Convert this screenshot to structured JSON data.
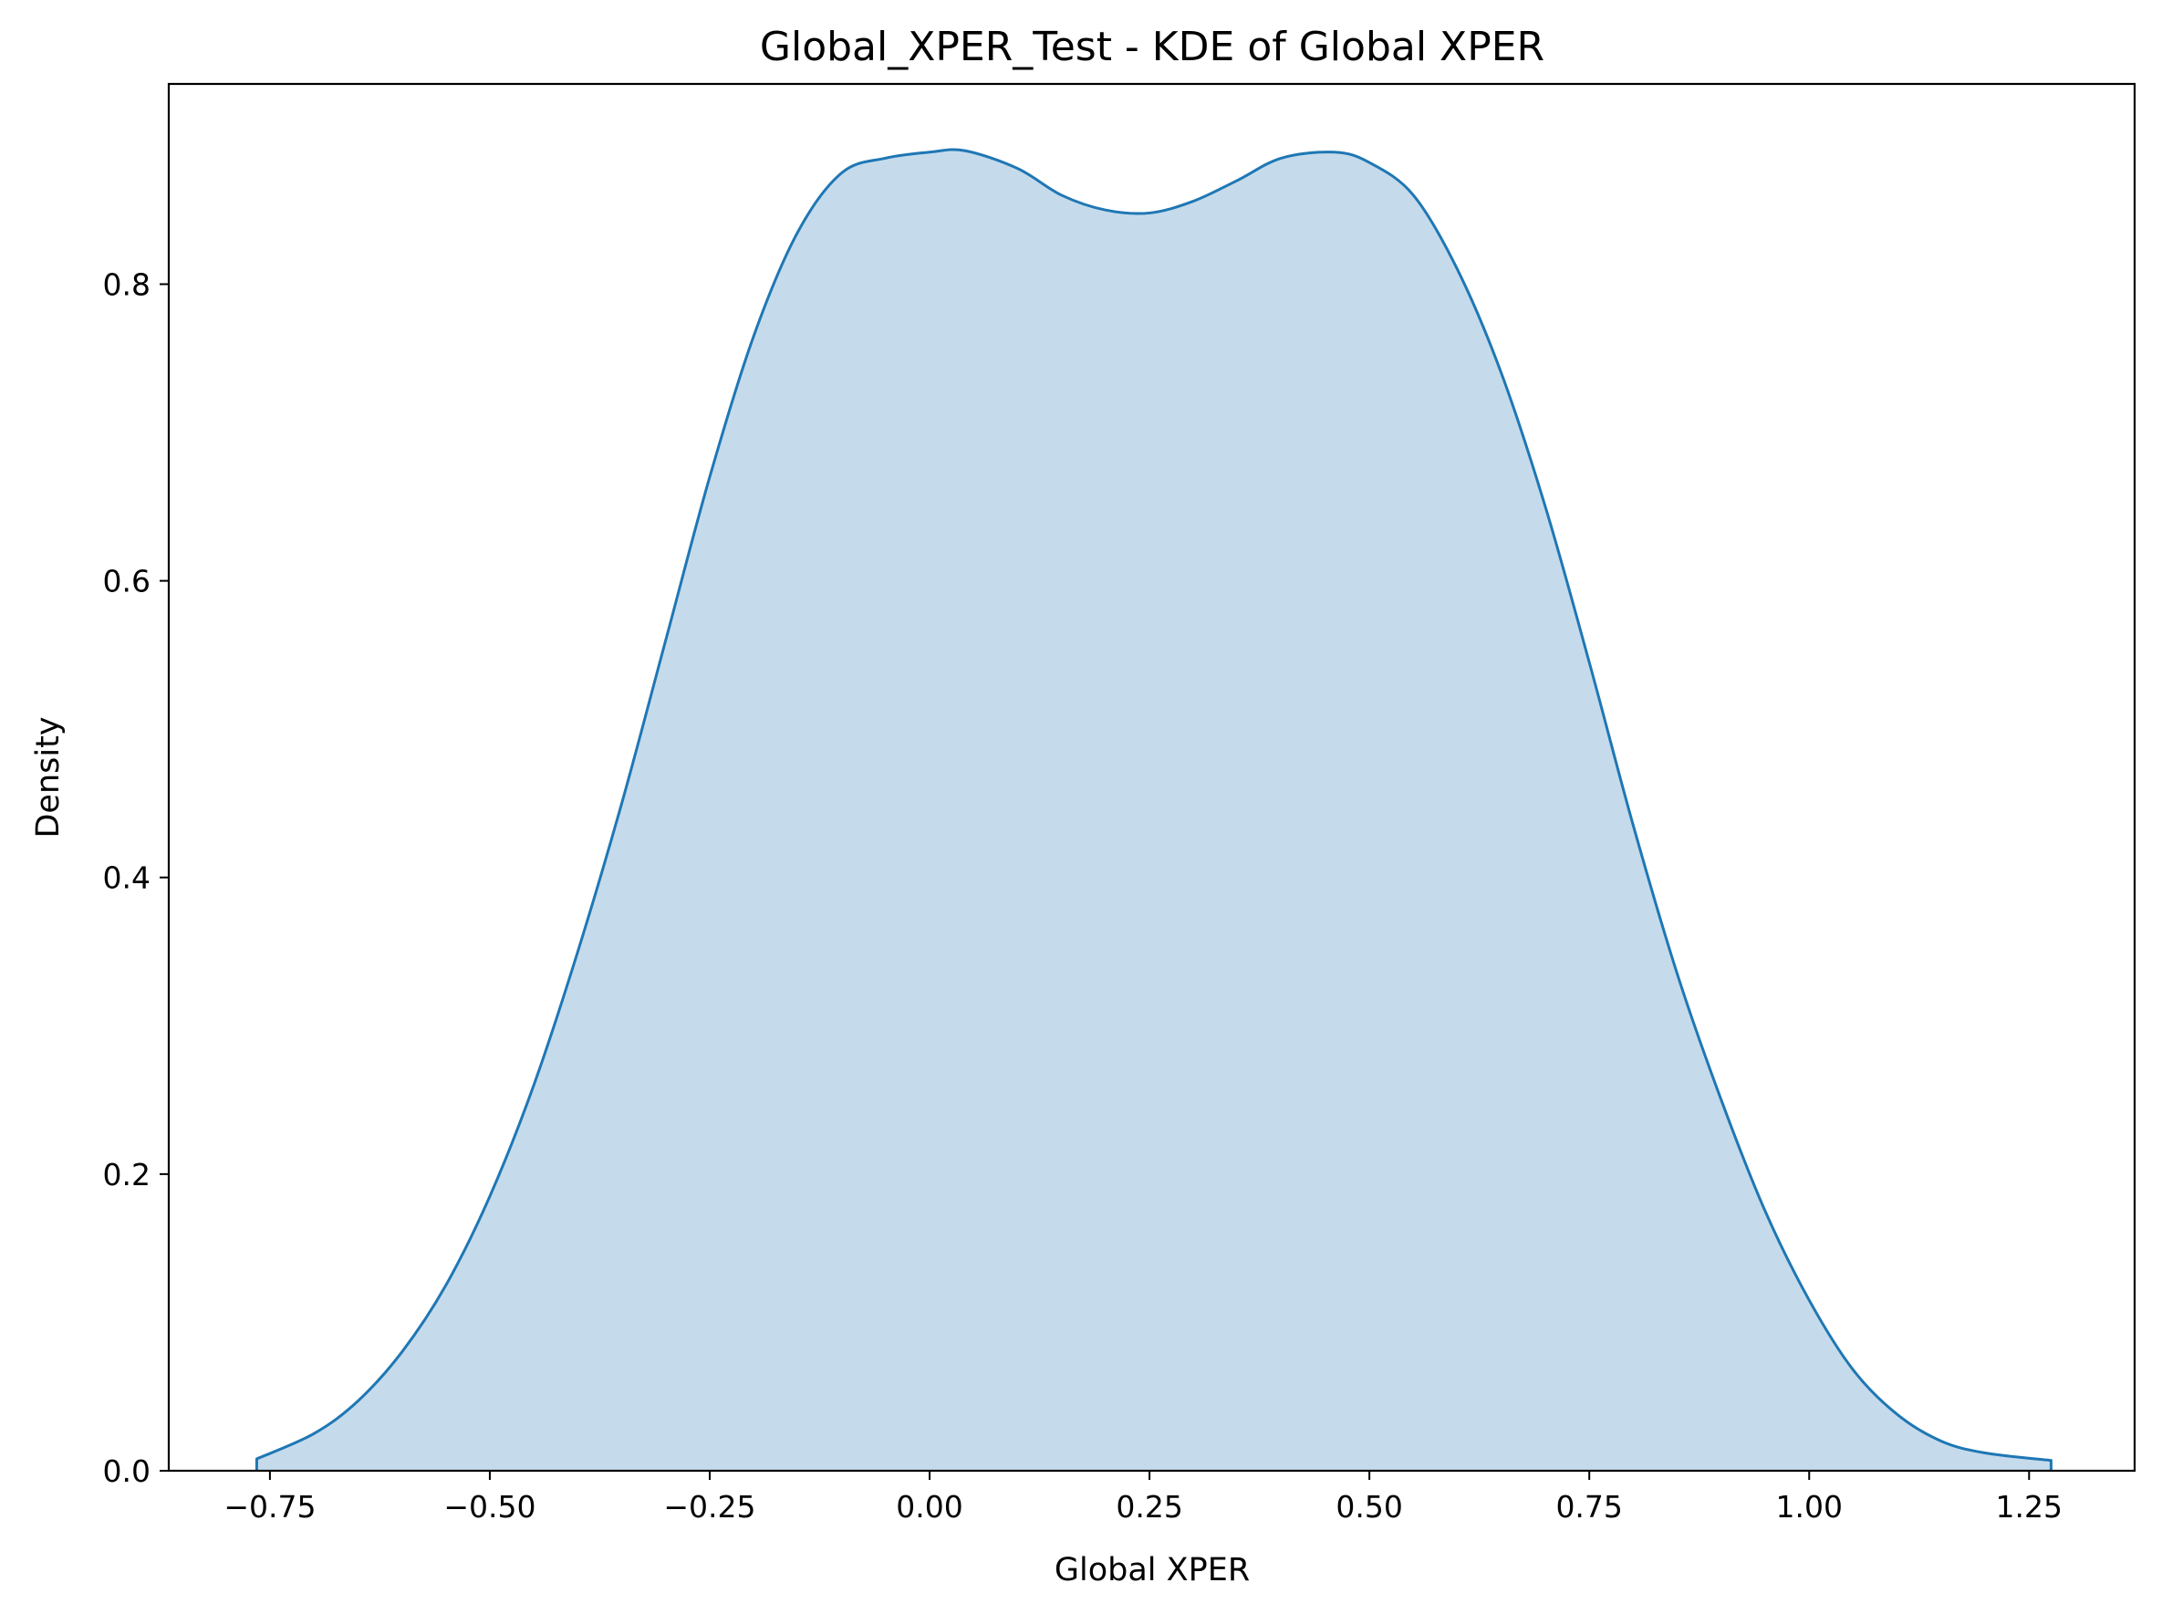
{
  "chart_data": {
    "type": "area",
    "title": "Global_XPER_Test - KDE of Global XPER",
    "xlabel": "Global XPER",
    "ylabel": "Density",
    "xlim": [
      -0.865,
      1.37
    ],
    "ylim": [
      0.0,
      0.935
    ],
    "xticks": [
      -0.75,
      -0.5,
      -0.25,
      0.0,
      0.25,
      0.5,
      0.75,
      1.0,
      1.25
    ],
    "xtick_labels": [
      "−0.75",
      "−0.50",
      "−0.25",
      "0.00",
      "0.25",
      "0.50",
      "0.75",
      "1.00",
      "1.25"
    ],
    "yticks": [
      0.0,
      0.2,
      0.4,
      0.6,
      0.8
    ],
    "ytick_labels": [
      "0.0",
      "0.2",
      "0.4",
      "0.6",
      "0.8"
    ],
    "grid": false,
    "line_color": "#1f77b4",
    "fill_color": "#c5dbec",
    "series": [
      {
        "x": [
          -0.765,
          -0.7,
          -0.65,
          -0.6,
          -0.55,
          -0.5,
          -0.45,
          -0.4,
          -0.35,
          -0.3,
          -0.25,
          -0.2,
          -0.15,
          -0.1,
          -0.05,
          0.0,
          0.04,
          0.1,
          0.15,
          0.2,
          0.25,
          0.3,
          0.35,
          0.4,
          0.46,
          0.5,
          0.55,
          0.6,
          0.65,
          0.7,
          0.75,
          0.8,
          0.85,
          0.9,
          0.95,
          1.0,
          1.05,
          1.1,
          1.15,
          1.2,
          1.275
        ],
        "y": [
          0.008,
          0.025,
          0.047,
          0.08,
          0.125,
          0.185,
          0.26,
          0.35,
          0.45,
          0.56,
          0.67,
          0.765,
          0.835,
          0.875,
          0.885,
          0.889,
          0.89,
          0.878,
          0.86,
          0.85,
          0.848,
          0.856,
          0.87,
          0.885,
          0.889,
          0.882,
          0.86,
          0.81,
          0.74,
          0.65,
          0.545,
          0.435,
          0.335,
          0.25,
          0.175,
          0.115,
          0.068,
          0.038,
          0.02,
          0.012,
          0.007
        ]
      }
    ]
  }
}
